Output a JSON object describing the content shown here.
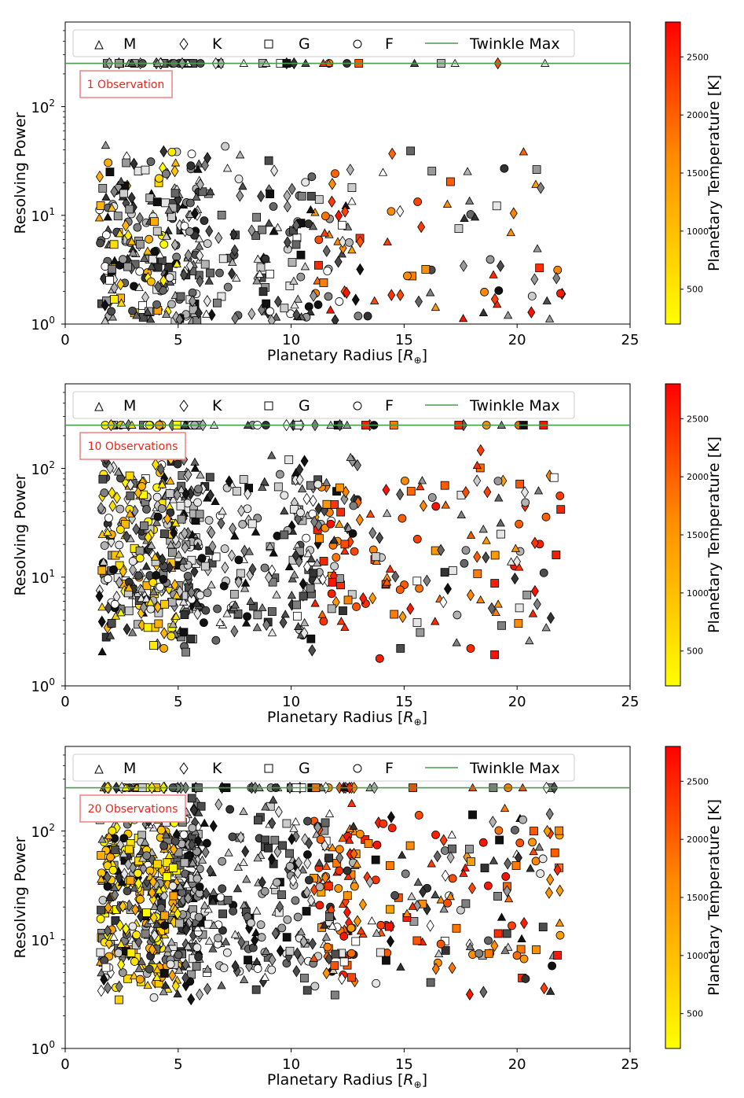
{
  "chart_data": [
    {
      "type": "scatter",
      "title": "",
      "annotation": "1 Observation",
      "density": 1,
      "xlabel": "Planetary Radius [R⊕]",
      "ylabel": "Resolving Power",
      "xlim": [
        0,
        25
      ],
      "ylim": [
        1,
        600
      ],
      "yscale": "log",
      "xticks": [
        "0",
        "5",
        "10",
        "15",
        "20",
        "25"
      ],
      "yticks": [
        "10^0",
        "10^1",
        "10^2"
      ],
      "colorbar": {
        "label": "Planetary Temperature [K]",
        "range": [
          200,
          2800
        ],
        "ticks": [
          "500",
          "1000",
          "1500",
          "2000",
          "2500"
        ]
      },
      "legend": [
        "M",
        "K",
        "G",
        "F",
        "Twinkle Max"
      ],
      "twinkle_max": 250
    },
    {
      "type": "scatter",
      "title": "",
      "annotation": "10 Observations",
      "density": 10,
      "xlabel": "Planetary Radius [R⊕]",
      "ylabel": "Resolving Power",
      "xlim": [
        0,
        25
      ],
      "ylim": [
        1,
        600
      ],
      "yscale": "log",
      "xticks": [
        "0",
        "5",
        "10",
        "15",
        "20",
        "25"
      ],
      "yticks": [
        "10^0",
        "10^1",
        "10^2"
      ],
      "colorbar": {
        "label": "Planetary Temperature [K]",
        "range": [
          200,
          2800
        ],
        "ticks": [
          "500",
          "1000",
          "1500",
          "2000",
          "2500"
        ]
      },
      "legend": [
        "M",
        "K",
        "G",
        "F",
        "Twinkle Max"
      ],
      "twinkle_max": 250
    },
    {
      "type": "scatter",
      "title": "",
      "annotation": "20 Observations",
      "density": 20,
      "xlabel": "Planetary Radius [R⊕]",
      "ylabel": "Resolving Power",
      "xlim": [
        0,
        25
      ],
      "ylim": [
        1,
        600
      ],
      "yscale": "log",
      "xticks": [
        "0",
        "5",
        "10",
        "15",
        "20",
        "25"
      ],
      "yticks": [
        "10^0",
        "10^1",
        "10^2"
      ],
      "colorbar": {
        "label": "Planetary Temperature [K]",
        "range": [
          200,
          2800
        ],
        "ticks": [
          "500",
          "1000",
          "1500",
          "2000",
          "2500"
        ]
      },
      "legend": [
        "M",
        "K",
        "G",
        "F",
        "Twinkle Max"
      ],
      "twinkle_max": 250
    }
  ],
  "colors": {
    "line": "#4a9a4a",
    "cbar_low": "#ffff00",
    "cbar_mid": "#ff8c00",
    "cbar_high": "#ff0000",
    "annotation": "#e8281e"
  }
}
